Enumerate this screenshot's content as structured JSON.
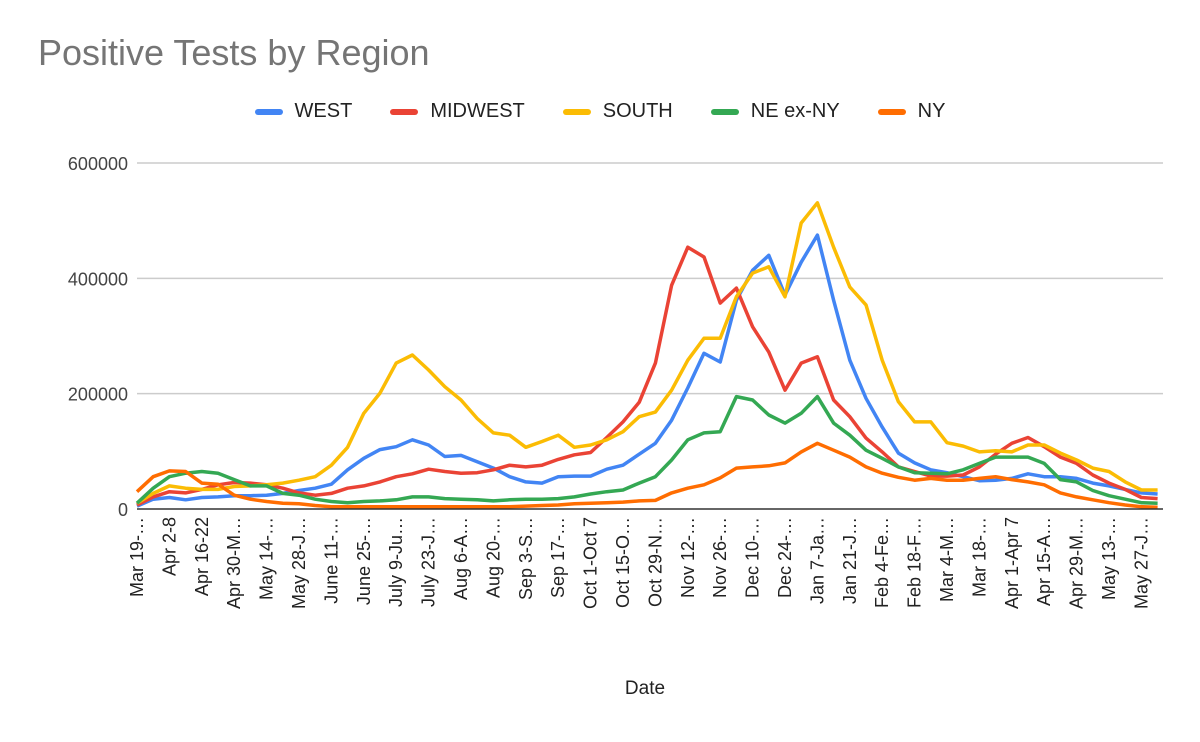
{
  "chart_data": {
    "type": "line",
    "title": "Positive Tests by Region",
    "xlabel": "Date",
    "ylabel": "",
    "ylim": [
      0,
      600000
    ],
    "yticks": [
      0,
      200000,
      400000,
      600000
    ],
    "grid": true,
    "legend_position": "top",
    "tick_labels": [
      "Mar 19-…",
      "Apr 2-8",
      "Apr 16-22",
      "Apr 30-M…",
      "May 14-…",
      "May 28-J…",
      "June 11-…",
      "June 25-…",
      "July 9-Ju…",
      "July 23-J…",
      "Aug 6-A…",
      "Aug 20-…",
      "Sep 3-S…",
      "Sep 17-…",
      "Oct 1-Oct 7",
      "Oct 15-O…",
      "Oct 29-N…",
      "Nov 12-…",
      "Nov 26-…",
      "Dec 10-…",
      "Dec 24-…",
      "Jan 7-Ja…",
      "Jan 21-J…",
      "Feb 4-Fe…",
      "Feb 18-F…",
      "Mar 4-M…",
      "Mar 18-…",
      "Apr 1-Apr 7",
      "Apr 15-A…",
      "Apr 29-M…",
      "May 13-…",
      "May 27-J…"
    ],
    "series": [
      {
        "name": "WEST",
        "color": "#4285F4",
        "values": [
          5000,
          17000,
          20000,
          16000,
          20000,
          21000,
          23000,
          23000,
          24000,
          27000,
          32000,
          36000,
          43000,
          68000,
          88000,
          103000,
          108000,
          120000,
          111000,
          91000,
          93000,
          82000,
          71000,
          56000,
          47000,
          45000,
          56000,
          57000,
          57000,
          69000,
          76000,
          95000,
          114000,
          154000,
          210000,
          270000,
          255000,
          362000,
          414000,
          440000,
          371000,
          428000,
          475000,
          362000,
          258000,
          192000,
          142000,
          97000,
          80000,
          68000,
          63000,
          56000,
          49000,
          50000,
          53000,
          61000,
          56000,
          56000,
          53000,
          45000,
          40000,
          34000,
          28000,
          26000
        ]
      },
      {
        "name": "MIDWEST",
        "color": "#EA4335",
        "values": [
          7000,
          21000,
          30000,
          28000,
          34000,
          42000,
          46000,
          45000,
          42000,
          36000,
          28000,
          24000,
          27000,
          36000,
          40000,
          47000,
          56000,
          61000,
          69000,
          65000,
          62000,
          63000,
          68000,
          76000,
          73000,
          76000,
          86000,
          94000,
          98000,
          124000,
          151000,
          185000,
          253000,
          388000,
          454000,
          437000,
          357000,
          383000,
          316000,
          272000,
          206000,
          253000,
          264000,
          189000,
          160000,
          123000,
          99000,
          73000,
          65000,
          57000,
          57000,
          59000,
          73000,
          95000,
          114000,
          124000,
          108000,
          90000,
          79000,
          59000,
          45000,
          34000,
          20000,
          18000
        ]
      },
      {
        "name": "SOUTH",
        "color": "#FBBC04",
        "values": [
          10000,
          27000,
          40000,
          36000,
          34000,
          34000,
          39000,
          40000,
          42000,
          45000,
          50000,
          56000,
          76000,
          107000,
          166000,
          201000,
          253000,
          267000,
          241000,
          212000,
          189000,
          157000,
          132000,
          128000,
          107000,
          117000,
          128000,
          107000,
          111000,
          120000,
          134000,
          160000,
          168000,
          206000,
          258000,
          296000,
          296000,
          368000,
          409000,
          420000,
          368000,
          496000,
          531000,
          454000,
          385000,
          354000,
          258000,
          186000,
          151000,
          151000,
          115000,
          109000,
          99000,
          101000,
          99000,
          111000,
          111000,
          97000,
          85000,
          71000,
          65000,
          47000,
          33000,
          33000
        ]
      },
      {
        "name": "NE ex-NY",
        "color": "#34A853",
        "values": [
          10000,
          36000,
          56000,
          62000,
          65000,
          62000,
          51000,
          40000,
          40000,
          27000,
          24000,
          17000,
          13000,
          11000,
          13000,
          14000,
          16000,
          21000,
          21000,
          18000,
          17000,
          16000,
          14000,
          16000,
          17000,
          17000,
          18000,
          21000,
          26000,
          30000,
          33000,
          45000,
          56000,
          85000,
          120000,
          132000,
          134000,
          195000,
          189000,
          163000,
          149000,
          166000,
          195000,
          149000,
          128000,
          102000,
          88000,
          73000,
          63000,
          62000,
          61000,
          68000,
          79000,
          90000,
          90000,
          90000,
          79000,
          51000,
          47000,
          32000,
          23000,
          17000,
          11000,
          10000
        ]
      },
      {
        "name": "NY",
        "color": "#FF6D01",
        "values": [
          30000,
          56000,
          66000,
          65000,
          45000,
          43000,
          24000,
          17000,
          13000,
          10000,
          9000,
          6000,
          4000,
          4000,
          4000,
          4000,
          4000,
          4000,
          4000,
          4000,
          4000,
          4000,
          4000,
          4000,
          5000,
          6000,
          7000,
          9000,
          10000,
          11000,
          12000,
          14000,
          15000,
          28000,
          36000,
          42000,
          54000,
          71000,
          73000,
          75000,
          80000,
          99000,
          114000,
          102000,
          90000,
          73000,
          62000,
          55000,
          50000,
          53000,
          50000,
          50000,
          53000,
          56000,
          51000,
          47000,
          42000,
          28000,
          21000,
          16000,
          11000,
          7000,
          4000,
          3000
        ]
      }
    ]
  }
}
